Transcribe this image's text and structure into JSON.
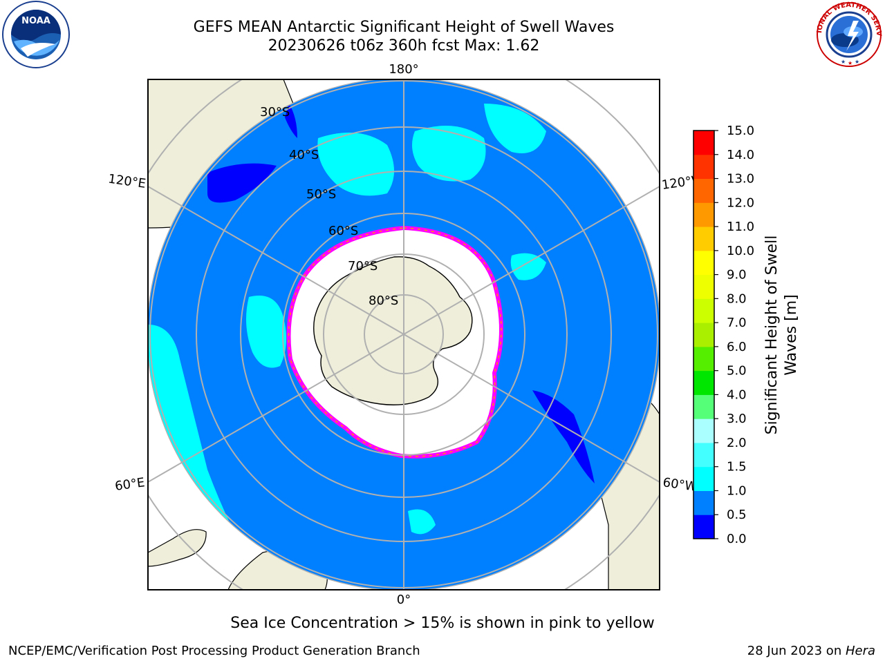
{
  "title": {
    "line1": "GEFS MEAN Antarctic Significant Height of Swell Waves",
    "line2": "20230626 t06z 360h fcst   Max: 1.62"
  },
  "logos": {
    "left": {
      "name": "noaa-logo",
      "text": "NOAA",
      "ring": "NATIONAL OCEANIC AND ATMOSPHERIC ADMINISTRATION · U.S. DEPARTMENT OF COMMERCE"
    },
    "right": {
      "name": "nws-logo",
      "ring": "NATIONAL WEATHER SERVICE"
    }
  },
  "map": {
    "projection": "south-polar-stereographic",
    "longitude_labels": {
      "top": "180°",
      "bottom": "0°",
      "upper_left": "120°E",
      "upper_right": "120°W",
      "lower_left": "60°E",
      "lower_right": "60°W"
    },
    "latitude_labels": [
      "30°S",
      "40°S",
      "50°S",
      "60°S",
      "70°S",
      "80°S"
    ],
    "colors": {
      "land": "#eeeedb",
      "ocean_0_5_1_0": "#0080ff",
      "ocean_1_0_1_5": "#00ffff",
      "ocean_0_0_0_5": "#0000ff",
      "ice_edge": "#ff00ff",
      "grid": "#b0b0b0"
    }
  },
  "colorbar": {
    "label": "Significant Height of Swell Waves [m]",
    "label_line1": "Significant Height of Swell",
    "label_line2": "Waves [m]",
    "ticks": [
      "0.0",
      "0.5",
      "1.0",
      "1.5",
      "2.0",
      "3.0",
      "4.0",
      "5.0",
      "6.0",
      "7.0",
      "8.0",
      "9.0",
      "10.0",
      "11.0",
      "12.0",
      "13.0",
      "14.0",
      "15.0"
    ],
    "colors": [
      "#0000ff",
      "#0080ff",
      "#00ffff",
      "#44ffff",
      "#aaffff",
      "#55ff77",
      "#00e600",
      "#55ee00",
      "#aaee00",
      "#ccff00",
      "#eeff00",
      "#ffff00",
      "#ffcc00",
      "#ff9900",
      "#ff6600",
      "#ff3300",
      "#ff0000"
    ]
  },
  "footer": {
    "ice_note": "Sea Ice Concentration > 15% is shown in pink to yellow",
    "left": "NCEP/EMC/Verification Post Processing Product Generation Branch",
    "date": "28 Jun 2023 on ",
    "machine": "Hera"
  }
}
